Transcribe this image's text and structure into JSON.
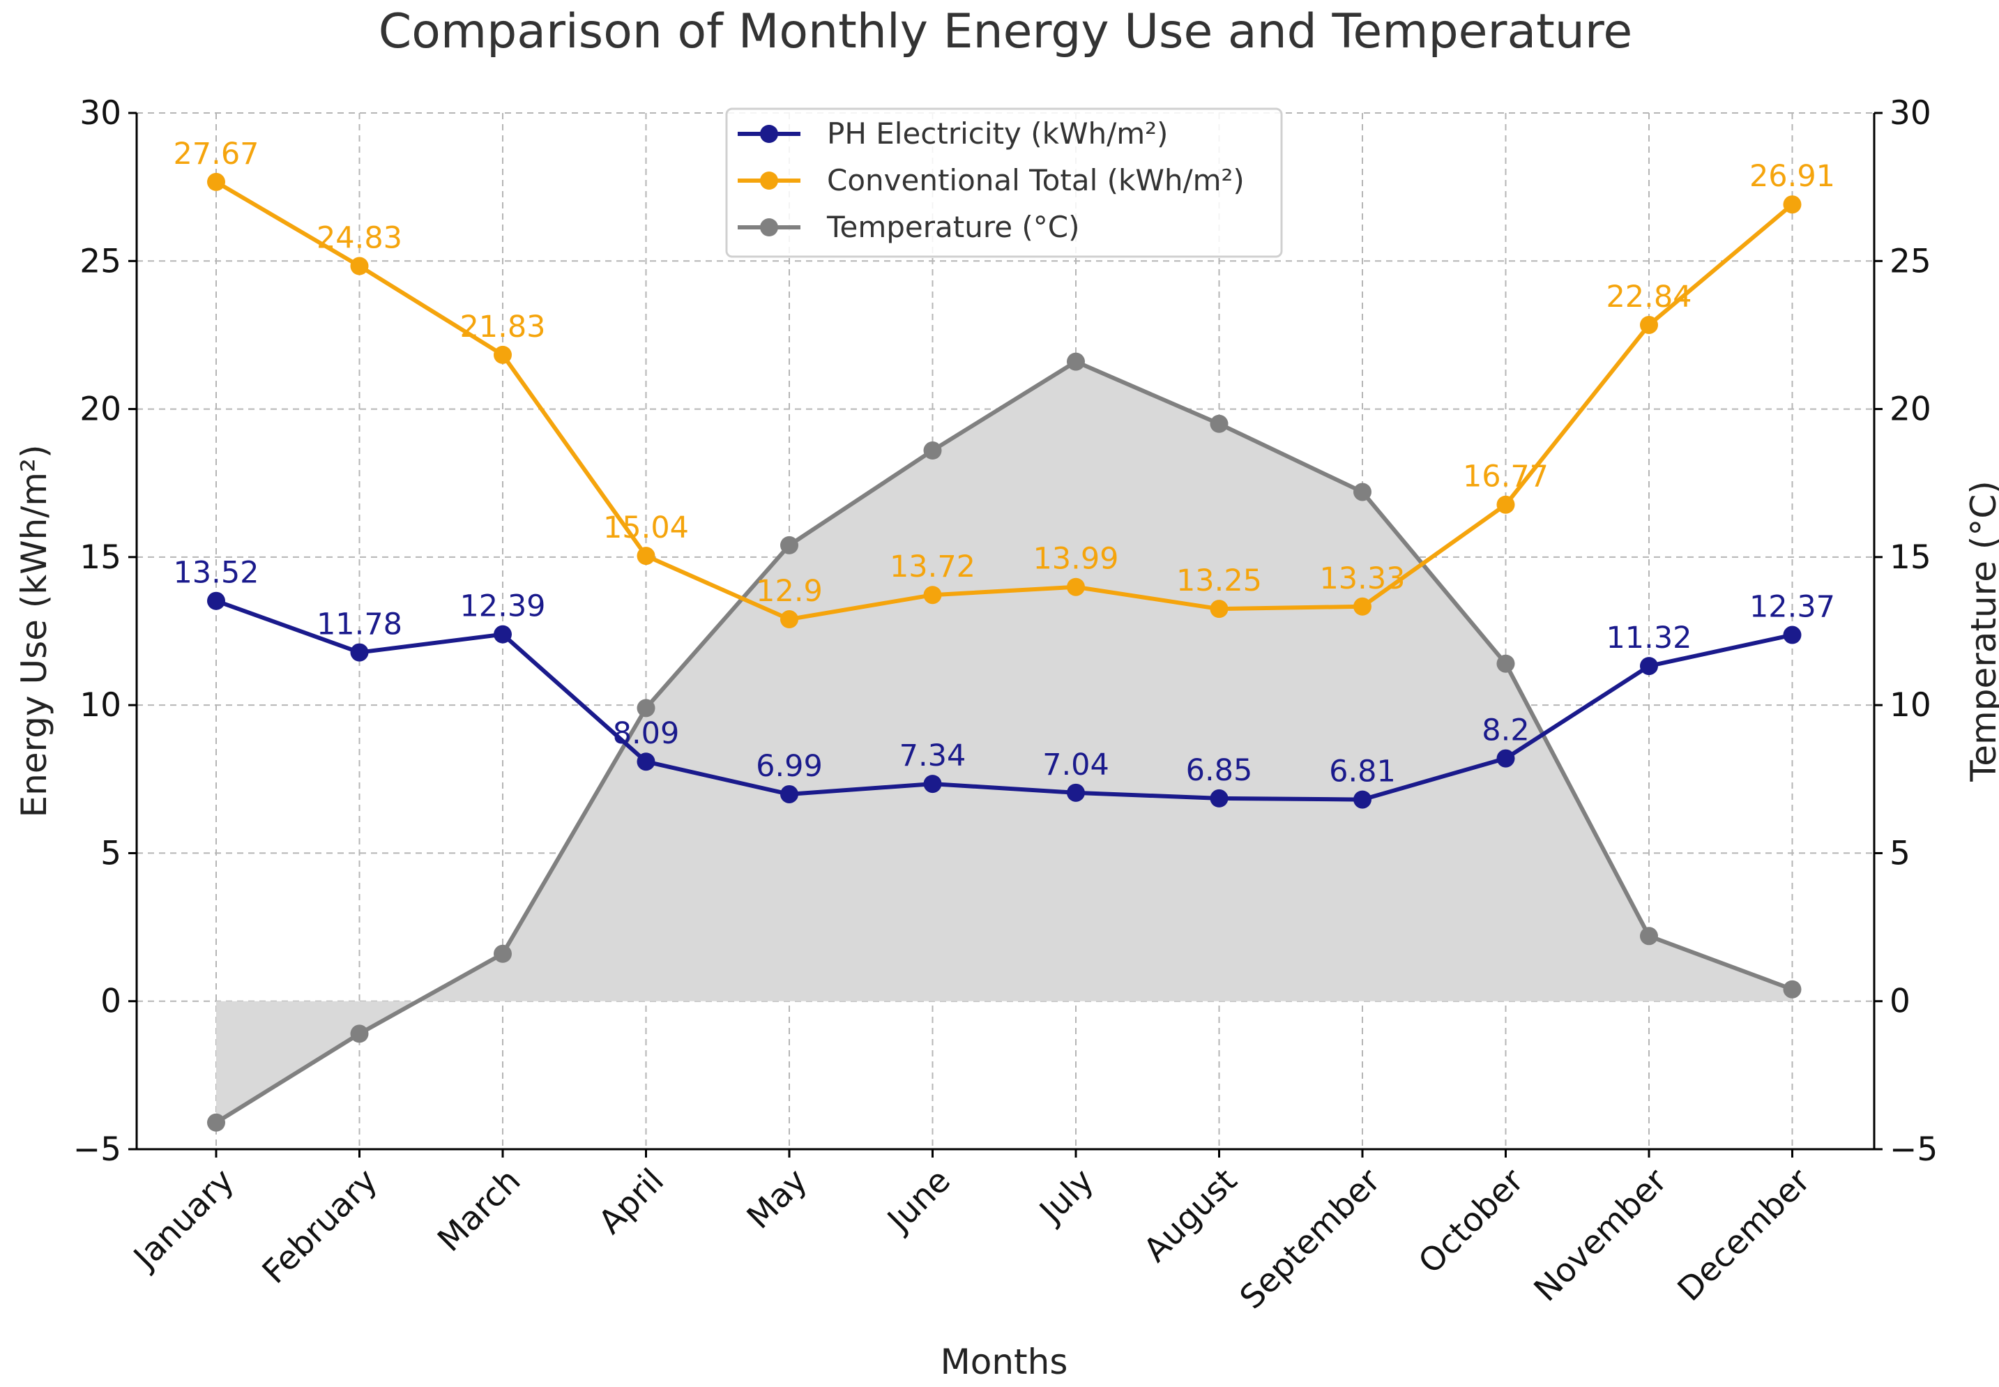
{
  "chart_data": {
    "type": "line",
    "title": "Comparison of Monthly Energy Use and Temperature",
    "xlabel": "Months",
    "ylabel": "Energy Use (kWh/m²)",
    "y2label": "Temperature (°C)",
    "ylim": [
      -5,
      30
    ],
    "y2lim": [
      -5,
      30
    ],
    "yticks": [
      "−5",
      "0",
      "5",
      "10",
      "15",
      "20",
      "25",
      "30"
    ],
    "ytick_values": [
      -5,
      0,
      5,
      10,
      15,
      20,
      25,
      30
    ],
    "grid": true,
    "legend_position": "top-center",
    "categories": [
      "January",
      "February",
      "March",
      "April",
      "May",
      "June",
      "July",
      "August",
      "September",
      "October",
      "November",
      "December"
    ],
    "series": [
      {
        "name": "PH Electricity (kWh/m²)",
        "axis": "left",
        "color": "#1a1a8c",
        "values": [
          13.52,
          11.78,
          12.39,
          8.09,
          6.99,
          7.34,
          7.04,
          6.85,
          6.81,
          8.2,
          11.32,
          12.37
        ],
        "labels": [
          "13.52",
          "11.78",
          "12.39",
          "8.09",
          "6.99",
          "7.34",
          "7.04",
          "6.85",
          "6.81",
          "8.2",
          "11.32",
          "12.37"
        ]
      },
      {
        "name": "Conventional Total (kWh/m²)",
        "axis": "left",
        "color": "#f5a40c",
        "values": [
          27.67,
          24.83,
          21.83,
          15.04,
          12.9,
          13.72,
          13.99,
          13.25,
          13.33,
          16.77,
          22.84,
          26.91
        ],
        "labels": [
          "27.67",
          "24.83",
          "21.83",
          "15.04",
          "12.9",
          "13.72",
          "13.99",
          "13.25",
          "13.33",
          "16.77",
          "22.84",
          "26.91"
        ]
      },
      {
        "name": "Temperature (°C)",
        "axis": "right",
        "color": "#808080",
        "fill": "#d9d9d9",
        "values": [
          -4.1,
          -1.1,
          1.6,
          9.9,
          15.4,
          18.6,
          21.6,
          19.5,
          17.2,
          11.4,
          2.2,
          0.4
        ]
      }
    ]
  }
}
